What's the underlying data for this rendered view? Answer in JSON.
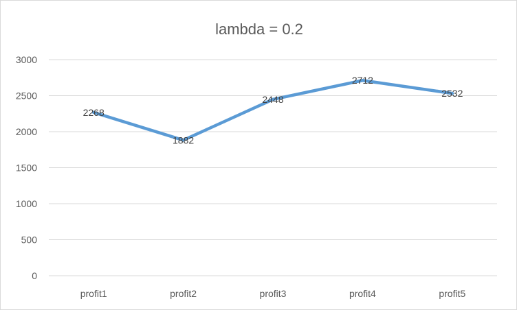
{
  "chart_data": {
    "type": "line",
    "title": "lambda = 0.2",
    "xlabel": "",
    "ylabel": "",
    "categories": [
      "profit1",
      "profit2",
      "profit3",
      "profit4",
      "profit5"
    ],
    "series": [
      {
        "values": [
          2268,
          1882,
          2448,
          2712,
          2532
        ],
        "color": "#5b9bd5"
      }
    ],
    "ylim": [
      0,
      3000
    ],
    "yticks": [
      0,
      500,
      1000,
      1500,
      2000,
      2500,
      3000
    ],
    "grid": true,
    "legend": "none",
    "data_labels": true
  }
}
